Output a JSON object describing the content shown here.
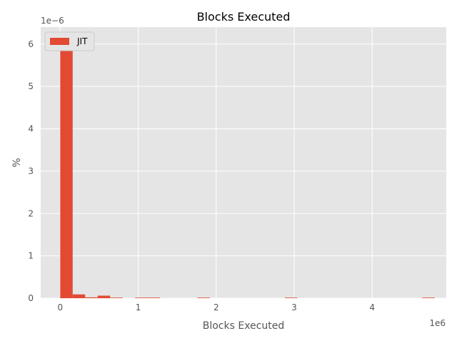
{
  "chart_data": {
    "type": "bar",
    "title": "Blocks Executed",
    "xlabel": "Blocks Executed",
    "ylabel": "%",
    "x_offset_text": "1e6",
    "y_offset_text": "1e−6",
    "x_ticks": [
      {
        "value": 0,
        "label": "0"
      },
      {
        "value": 1,
        "label": "1"
      },
      {
        "value": 2,
        "label": "2"
      },
      {
        "value": 3,
        "label": "3"
      },
      {
        "value": 4,
        "label": "4"
      }
    ],
    "y_ticks": [
      {
        "value": 0,
        "label": "0"
      },
      {
        "value": 1,
        "label": "1"
      },
      {
        "value": 2,
        "label": "2"
      },
      {
        "value": 3,
        "label": "3"
      },
      {
        "value": 4,
        "label": "4"
      },
      {
        "value": 5,
        "label": "5"
      },
      {
        "value": 6,
        "label": "6"
      }
    ],
    "xlim": [
      -0.25,
      4.95
    ],
    "ylim": [
      0,
      6.4
    ],
    "grid": true,
    "legend_position": "top-left",
    "series": [
      {
        "name": "JIT",
        "color": "#E24A33",
        "bins": [
          {
            "x0": 0.0,
            "x1": 0.16,
            "value": 6.18
          },
          {
            "x0": 0.16,
            "x1": 0.32,
            "value": 0.09
          },
          {
            "x0": 0.32,
            "x1": 0.48,
            "value": 0.02
          },
          {
            "x0": 0.48,
            "x1": 0.64,
            "value": 0.06
          },
          {
            "x0": 0.64,
            "x1": 0.8,
            "value": 0.01
          },
          {
            "x0": 0.96,
            "x1": 1.12,
            "value": 0.008
          },
          {
            "x0": 1.12,
            "x1": 1.28,
            "value": 0.008
          },
          {
            "x0": 1.76,
            "x1": 1.92,
            "value": 0.008
          },
          {
            "x0": 2.88,
            "x1": 3.04,
            "value": 0.008
          },
          {
            "x0": 4.64,
            "x1": 4.8,
            "value": 0.008
          }
        ]
      }
    ]
  }
}
